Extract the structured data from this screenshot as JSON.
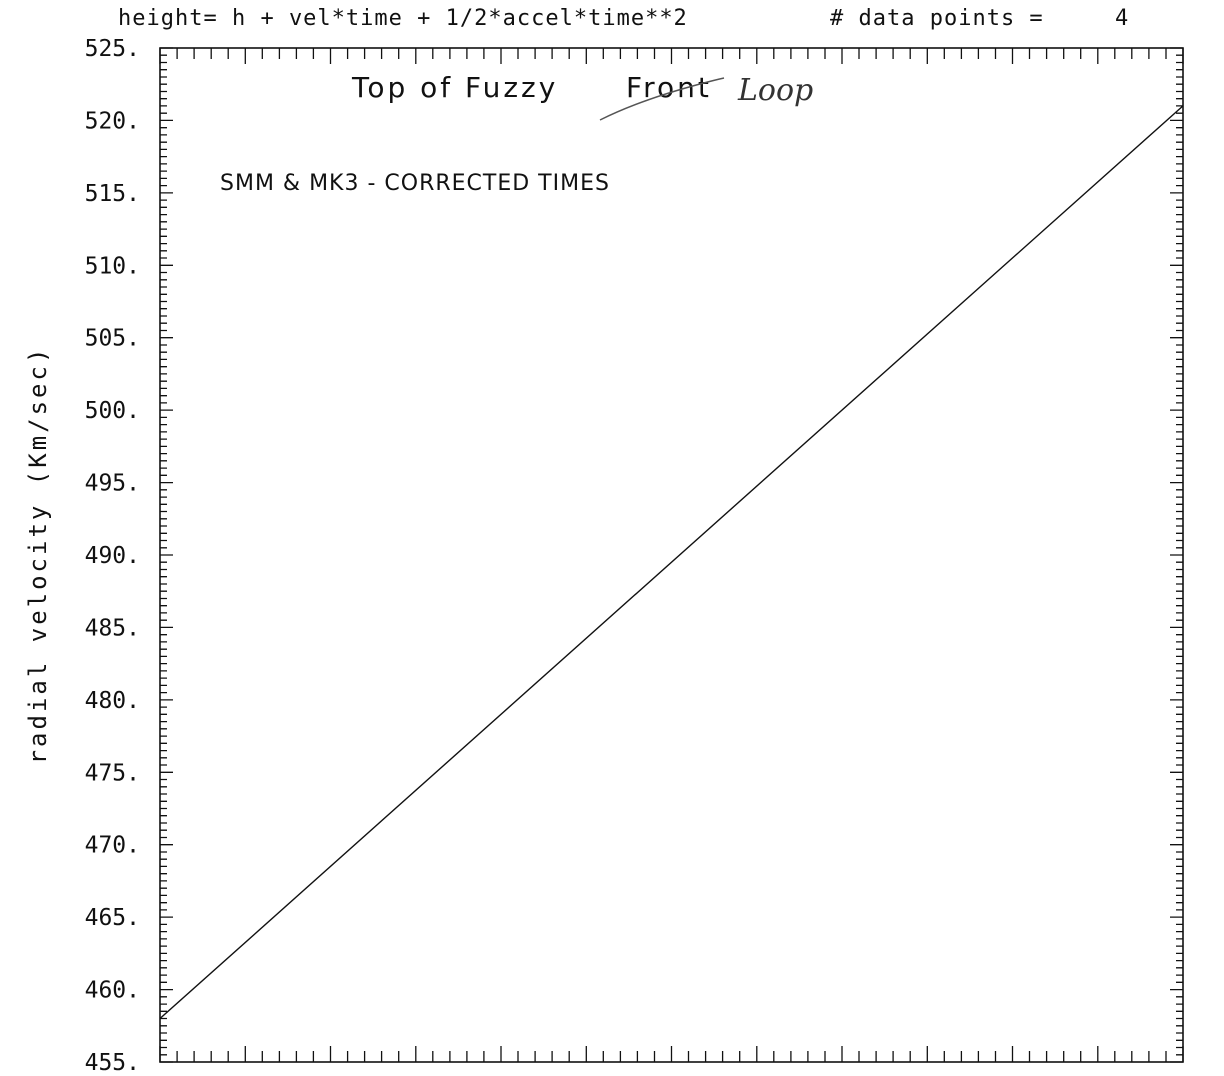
{
  "header": {
    "formula": "height= h + vel*time + 1/2*accel*time**2",
    "points_label": "# data points =",
    "points_value": "4"
  },
  "chart_data": {
    "type": "line",
    "title": "Top of Fuzzy Front",
    "title_struck": "Front",
    "title_prefix": "Top of Fuzzy",
    "handwritten_annotation": "Loop",
    "subtitle": "SMM & MK3 - CORRECTED TIMES",
    "ylabel": "radial velocity (Km/sec)",
    "xlabel": "",
    "ylim": [
      455,
      525
    ],
    "xlim": [
      0,
      1
    ],
    "yticks": [
      "455.",
      "460.",
      "465.",
      "470.",
      "475.",
      "480.",
      "485.",
      "490.",
      "495.",
      "500.",
      "505.",
      "510.",
      "515.",
      "520.",
      "525."
    ],
    "ytick_values": [
      455,
      460,
      465,
      470,
      475,
      480,
      485,
      490,
      495,
      500,
      505,
      510,
      515,
      520,
      525
    ],
    "series": [
      {
        "x": [
          0,
          1
        ],
        "y": [
          458,
          521
        ]
      }
    ],
    "grid": false
  }
}
